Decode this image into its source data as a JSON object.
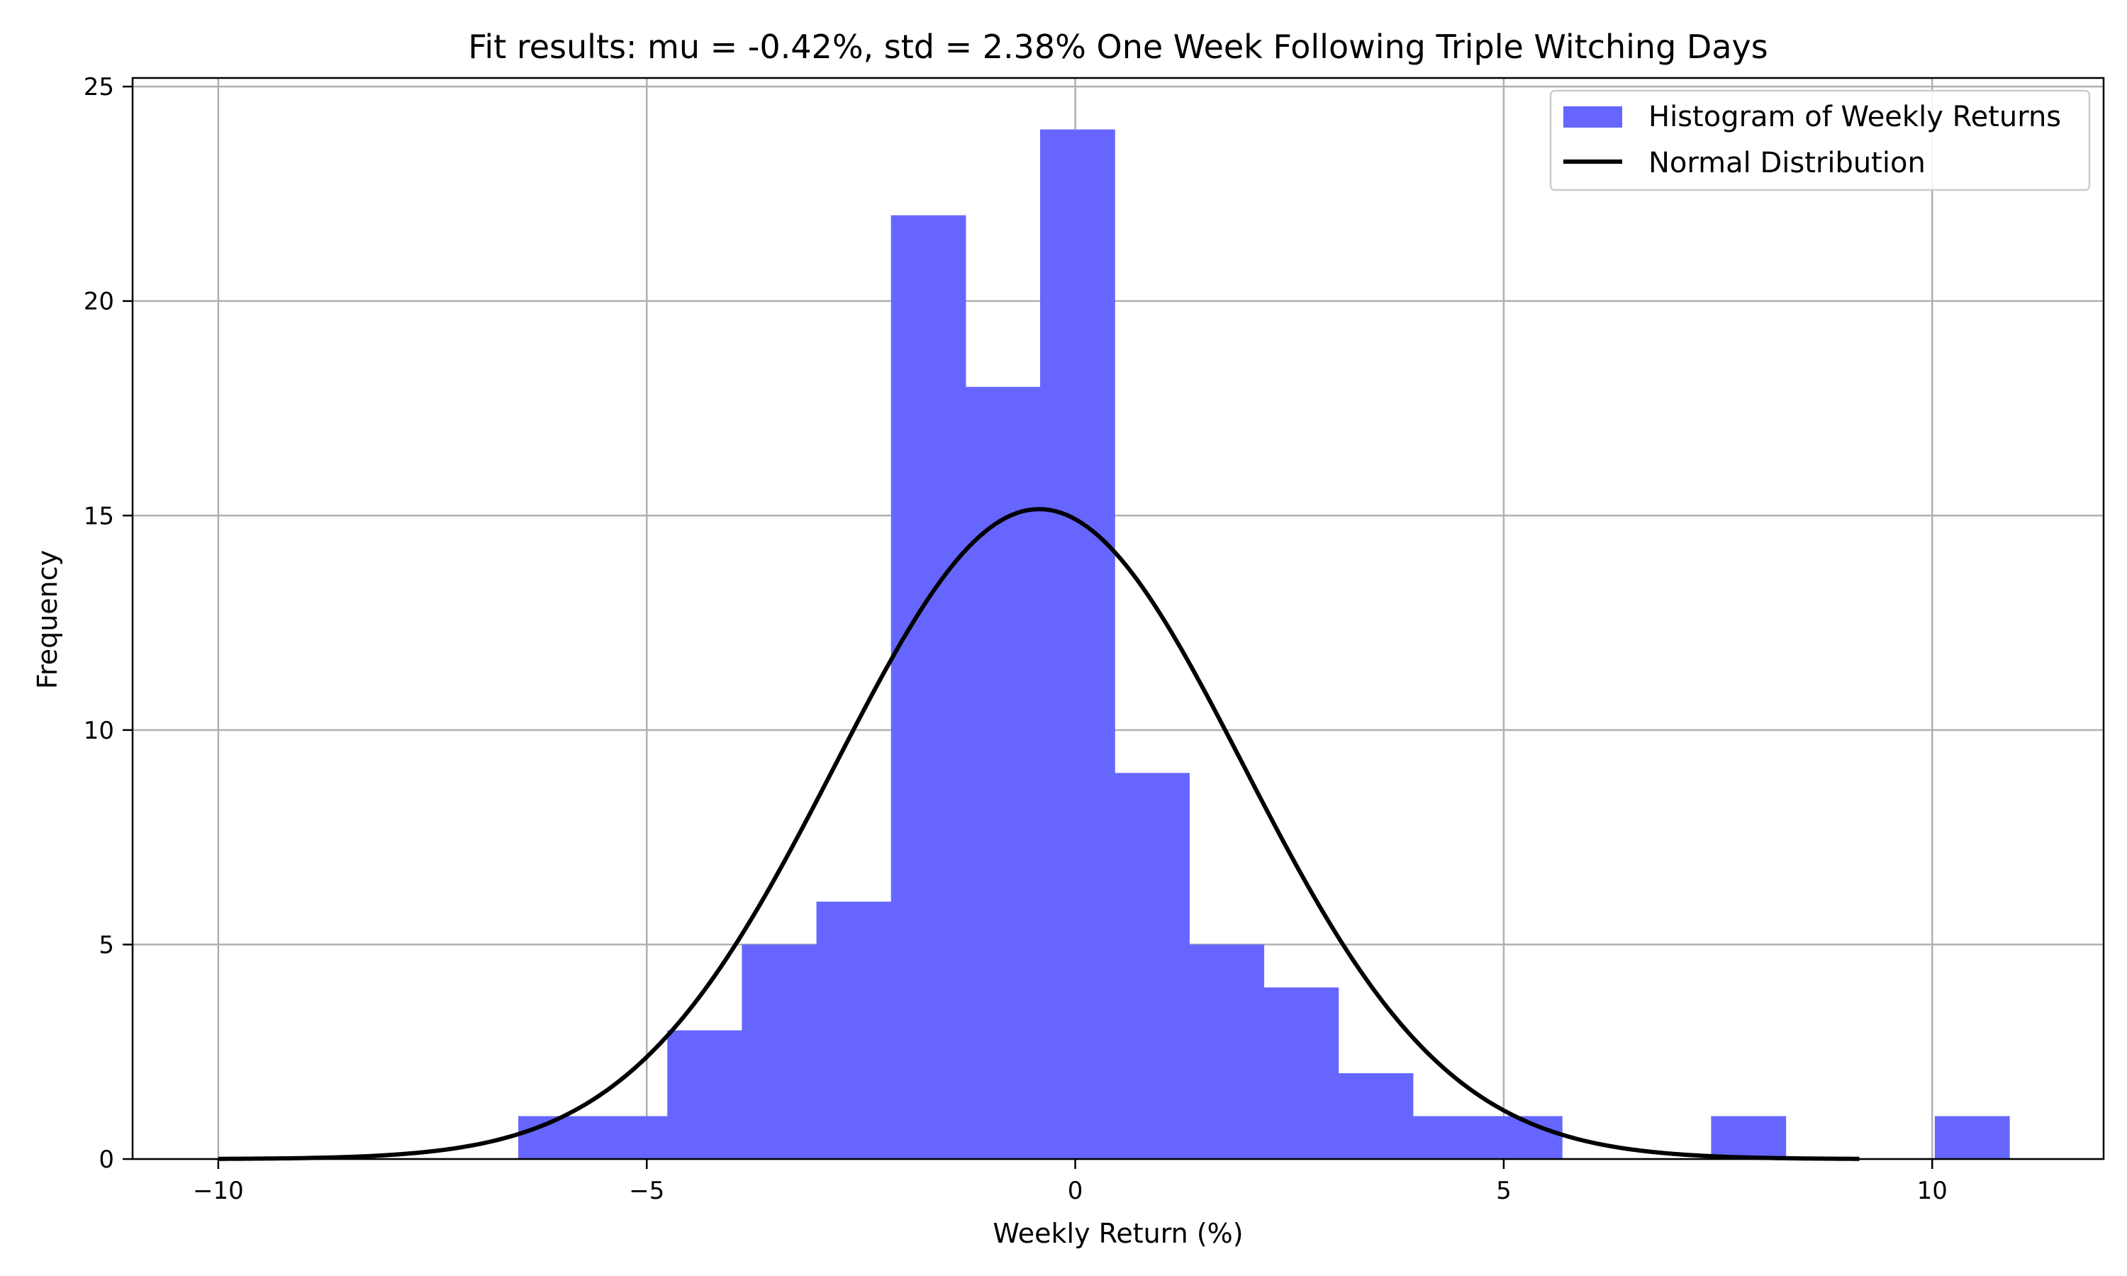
{
  "chart_data": {
    "type": "bar",
    "title": "Fit results: mu = -0.42%,  std = 2.38% One Week Following Triple Witching Days",
    "xlabel": "Weekly Return (%)",
    "ylabel": "Frequency",
    "xlim": [
      -11,
      12
    ],
    "ylim": [
      0,
      25.2
    ],
    "xticks": [
      -10,
      -5,
      0,
      5,
      10
    ],
    "xtick_labels": [
      "−10",
      "−5",
      "0",
      "5",
      "10"
    ],
    "yticks": [
      0,
      5,
      10,
      15,
      20,
      25
    ],
    "ytick_labels": [
      "0",
      "5",
      "10",
      "15",
      "20",
      "25"
    ],
    "grid": true,
    "legend_position": "top-right",
    "histogram": {
      "name": "Histogram of Weekly Returns",
      "color": "#6666ff",
      "bins": [
        {
          "x0": -6.5,
          "x1": -5.63,
          "count": 1
        },
        {
          "x0": -5.63,
          "x1": -4.76,
          "count": 1
        },
        {
          "x0": -4.76,
          "x1": -3.89,
          "count": 3
        },
        {
          "x0": -3.89,
          "x1": -3.02,
          "count": 5
        },
        {
          "x0": -3.02,
          "x1": -2.15,
          "count": 6
        },
        {
          "x0": -2.15,
          "x1": -1.28,
          "count": 22
        },
        {
          "x0": -1.28,
          "x1": -0.41,
          "count": 18
        },
        {
          "x0": -0.41,
          "x1": 0.46,
          "count": 24
        },
        {
          "x0": 0.46,
          "x1": 1.33,
          "count": 9
        },
        {
          "x0": 1.33,
          "x1": 2.2,
          "count": 5
        },
        {
          "x0": 2.2,
          "x1": 3.07,
          "count": 4
        },
        {
          "x0": 3.07,
          "x1": 3.94,
          "count": 2
        },
        {
          "x0": 3.94,
          "x1": 4.81,
          "count": 1
        },
        {
          "x0": 4.81,
          "x1": 5.68,
          "count": 1
        },
        {
          "x0": 5.68,
          "x1": 6.55,
          "count": 0
        },
        {
          "x0": 6.55,
          "x1": 7.42,
          "count": 0
        },
        {
          "x0": 7.42,
          "x1": 8.29,
          "count": 1
        },
        {
          "x0": 8.29,
          "x1": 9.16,
          "count": 0
        },
        {
          "x0": 9.16,
          "x1": 10.03,
          "count": 0
        },
        {
          "x0": 10.03,
          "x1": 10.9,
          "count": 1
        }
      ]
    },
    "curve": {
      "name": "Normal Distribution",
      "color": "#000000",
      "mu": -0.42,
      "std": 2.38,
      "peak": 15.15,
      "x_range": [
        -10,
        9.15
      ]
    }
  }
}
